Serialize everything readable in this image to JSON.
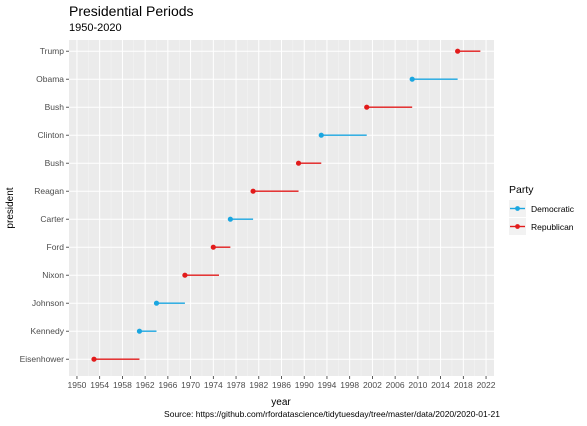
{
  "chart_data": {
    "type": "dumbbell",
    "title": "Presidential Periods",
    "subtitle": "1950-2020",
    "xlabel": "year",
    "ylabel": "president",
    "caption": "Source: https://github.com/rfordatascience/tidytuesday/tree/master/data/2020/2020-01-21",
    "xlim": [
      1948.6,
      2023.4
    ],
    "xticks": [
      1950,
      1954,
      1958,
      1962,
      1966,
      1970,
      1974,
      1978,
      1982,
      1986,
      1990,
      1994,
      1998,
      2002,
      2006,
      2010,
      2014,
      2018,
      2022
    ],
    "grid": true,
    "legend": {
      "title": "Party",
      "position": "right",
      "entries": [
        {
          "name": "Democratic",
          "color": "#1aa6e0"
        },
        {
          "name": "Republican",
          "color": "#e21b1b"
        }
      ]
    },
    "presidents": [
      {
        "name": "Eisenhower",
        "party": "Republican",
        "start": 1953,
        "end": 1961
      },
      {
        "name": "Kennedy",
        "party": "Democratic",
        "start": 1961,
        "end": 1964
      },
      {
        "name": "Johnson",
        "party": "Democratic",
        "start": 1964,
        "end": 1969
      },
      {
        "name": "Nixon",
        "party": "Republican",
        "start": 1969,
        "end": 1975
      },
      {
        "name": "Ford",
        "party": "Republican",
        "start": 1974,
        "end": 1977
      },
      {
        "name": "Carter",
        "party": "Democratic",
        "start": 1977,
        "end": 1981
      },
      {
        "name": "Reagan",
        "party": "Republican",
        "start": 1981,
        "end": 1989
      },
      {
        "name": "Bush",
        "party": "Republican",
        "start": 1989,
        "end": 1993
      },
      {
        "name": "Clinton",
        "party": "Democratic",
        "start": 1993,
        "end": 2001
      },
      {
        "name": "Bush",
        "party": "Republican",
        "start": 2001,
        "end": 2009
      },
      {
        "name": "Obama",
        "party": "Democratic",
        "start": 2009,
        "end": 2017
      },
      {
        "name": "Trump",
        "party": "Republican",
        "start": 2017,
        "end": 2021
      }
    ]
  }
}
